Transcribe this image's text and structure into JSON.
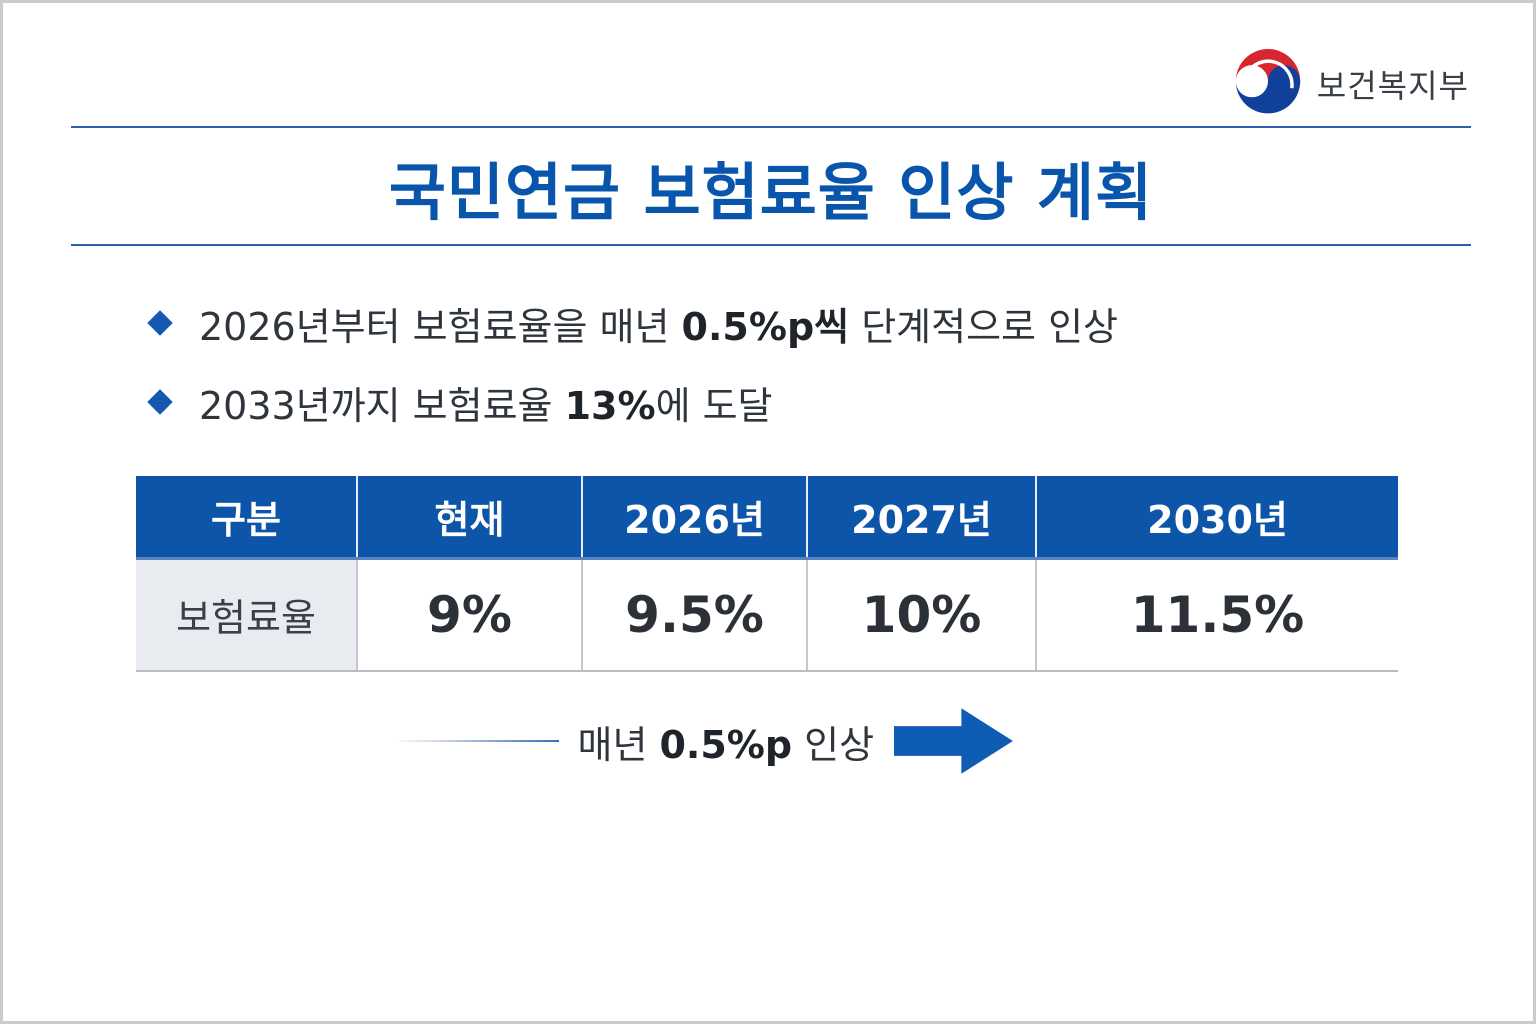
{
  "header": {
    "ministry_name": "보건복지부",
    "emblem_icon": "taegeuk-emblem-icon",
    "emblem_colors": {
      "red": "#d8262f",
      "blue": "#11409a"
    }
  },
  "title": "국민연금 보험료율 인상 계획",
  "bullets": [
    {
      "before": "2026년부터 보험료율을 매년 ",
      "bold": "0.5%p씩",
      "after": " 단계적으로 인상"
    },
    {
      "before": "2033년까지 보험료율 ",
      "bold": "13%",
      "after": "에 도달"
    }
  ],
  "table": {
    "headers": [
      "구분",
      "현재",
      "2026년",
      "2027년",
      "2030년"
    ],
    "rows": [
      {
        "label": "보험료율",
        "values": [
          "9%",
          "9.5%",
          "10%",
          "11.5%"
        ]
      }
    ]
  },
  "annual_note": {
    "prefix": "매년 ",
    "bold": "0.5%p",
    "suffix": " 인상",
    "arrow_icon": "arrow-right-icon"
  },
  "colors": {
    "accent": "#0d55a9",
    "title": "#0a55ac",
    "row_head_bg": "#e8ecf0"
  }
}
